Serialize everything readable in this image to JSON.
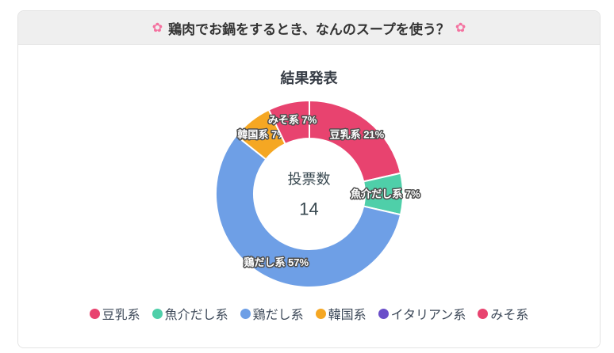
{
  "header": {
    "title": "鶏肉でお鍋をするとき、なんのスープを使う？",
    "flower_icon": "✿"
  },
  "chart": {
    "title": "結果発表",
    "center_label": "投票数",
    "center_value": "14"
  },
  "colors": {
    "pink": "#e8436f",
    "teal": "#4fcfa9",
    "blue": "#6e9fe6",
    "orange": "#f5a723",
    "purple": "#6a4ec9",
    "header_bg": "#efefef",
    "text_dark": "#37474f"
  },
  "chart_data": {
    "type": "pie",
    "subtype": "donut",
    "title": "結果発表",
    "center": {
      "label": "投票数",
      "value": 14
    },
    "total_votes": 14,
    "legend_position": "bottom",
    "segments": [
      {
        "label": "豆乳系",
        "value": 3,
        "percent_label": "21%",
        "color": "#e8436f"
      },
      {
        "label": "魚介だし系",
        "value": 1,
        "percent_label": "7%",
        "color": "#4fcfa9"
      },
      {
        "label": "鶏だし系",
        "value": 8,
        "percent_label": "57%",
        "color": "#6e9fe6"
      },
      {
        "label": "韓国系",
        "value": 1,
        "percent_label": "7%",
        "color": "#f5a723"
      },
      {
        "label": "みそ系",
        "value": 1,
        "percent_label": "7%",
        "color": "#e8436f"
      }
    ],
    "legend": [
      {
        "label": "豆乳系",
        "color": "#e8436f"
      },
      {
        "label": "魚介だし系",
        "color": "#4fcfa9"
      },
      {
        "label": "鶏だし系",
        "color": "#6e9fe6"
      },
      {
        "label": "韓国系",
        "color": "#f5a723"
      },
      {
        "label": "イタリアン系",
        "color": "#6a4ec9"
      },
      {
        "label": "みそ系",
        "color": "#e8436f"
      }
    ]
  }
}
